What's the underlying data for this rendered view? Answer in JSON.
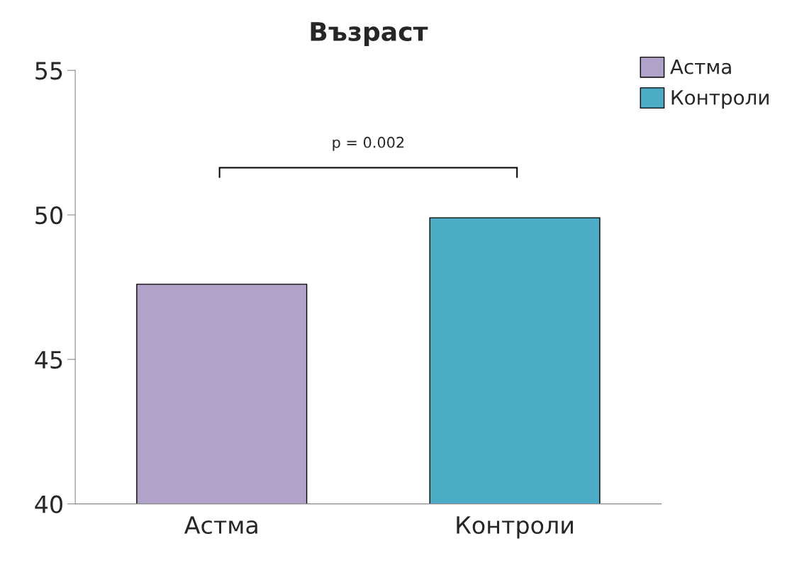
{
  "chart_data": {
    "type": "bar",
    "title": "Възраст",
    "categories": [
      "Астма",
      "Контроли"
    ],
    "series": [
      {
        "name": "Астма",
        "color": "#b1a2c9",
        "values": [
          47.6,
          null
        ]
      },
      {
        "name": "Контроли",
        "color": "#4bacc6",
        "values": [
          null,
          49.9
        ]
      }
    ],
    "ylim": [
      40,
      55
    ],
    "yticks": [
      40,
      45,
      50,
      55
    ],
    "grid": false,
    "legend": "top right",
    "annotations": [
      "p = 0.002"
    ]
  }
}
